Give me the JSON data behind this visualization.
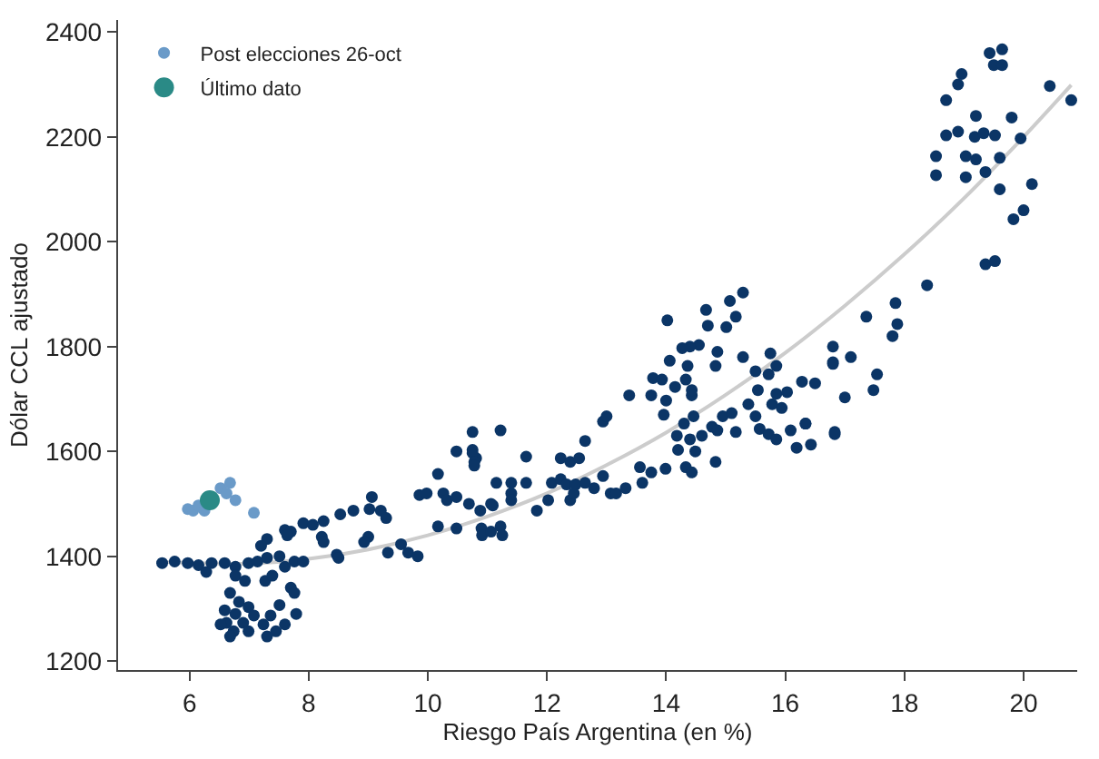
{
  "chart_data": {
    "type": "scatter",
    "xlabel": "Riesgo País Argentina (en %)",
    "ylabel": "Dólar CCL ajustado",
    "xlim": [
      4.8,
      20.9
    ],
    "ylim": [
      1183,
      2423
    ],
    "xticks": [
      6,
      8,
      10,
      12,
      14,
      16,
      18,
      20
    ],
    "yticks": [
      1200,
      1400,
      1600,
      1800,
      2000,
      2200,
      2400
    ],
    "grid": false,
    "legend": "top left",
    "series": [
      {
        "type": "line",
        "marker": "none",
        "color": "#cccccc",
        "x": [
          5.6,
          7,
          8,
          9,
          10,
          11,
          12,
          13,
          14,
          15,
          16,
          17,
          18,
          19,
          20,
          20.8
        ],
        "values": [
          1389,
          1386,
          1395,
          1413,
          1440,
          1476,
          1520,
          1574,
          1636,
          1708,
          1788,
          1878,
          1976,
          2083,
          2200,
          2299
        ]
      },
      {
        "marker": "circle",
        "color": "#0b3566",
        "x": [
          19.43,
          19.64,
          19.5,
          19.64,
          18.96,
          18.9,
          20.44,
          20.8,
          18.7,
          19.8,
          19.2,
          18.7,
          18.9,
          19.18,
          19.33,
          19.52,
          19.95,
          18.53,
          19.03,
          19.2,
          19.6,
          19.36,
          18.53,
          19.03,
          19.6,
          20.14,
          20.0,
          19.83,
          19.36,
          19.52,
          18.38,
          17.85,
          17.36,
          17.88,
          17.8,
          16.8,
          17.1,
          16.8,
          17.54,
          16.5,
          16.28,
          17.0,
          17.48,
          16.34,
          16.83,
          15.29,
          15.07,
          14.67,
          15.17,
          14.02,
          14.7,
          15.01,
          14.55,
          14.4,
          14.27,
          14.86,
          14.06,
          15.29,
          15.75,
          14.36,
          14.83,
          13.78,
          13.93,
          14.15,
          14.33,
          15.5,
          15.72,
          15.85,
          13.38,
          13.75,
          14.0,
          14.43,
          14.43,
          15.54,
          15.85,
          15.78,
          15.38,
          16.03,
          14.95,
          15.1,
          15.5,
          15.94,
          12.94,
          13.0,
          13.96,
          14.46,
          14.3,
          14.77,
          14.86,
          14.18,
          14.4,
          14.6,
          15.17,
          15.57,
          15.72,
          15.85,
          16.09,
          16.34,
          16.19,
          16.43,
          16.83,
          16.8,
          14.2,
          14.49,
          14.83,
          14.33,
          14.43,
          13.99,
          13.56,
          13.75,
          12.64,
          11.65,
          12.23,
          12.39,
          12.54,
          12.08,
          12.23,
          12.33,
          12.48,
          12.64,
          12.79,
          12.94,
          13.07,
          13.16,
          12.39,
          12.45,
          13.32,
          13.6,
          11.15,
          11.4,
          11.65,
          12.02,
          11.83,
          11.4,
          11.4,
          10.88,
          11.09,
          10.9,
          11.22,
          11.25,
          10.75,
          11.22,
          10.75,
          10.81,
          10.48,
          10.75,
          10.78,
          10.78,
          10.17,
          9.06,
          9.02,
          9.21,
          9.86,
          9.98,
          10.26,
          10.32,
          10.48,
          10.69,
          11.06,
          8.75,
          8.53,
          9.3,
          8.25,
          7.91,
          8.07,
          7.6,
          7.7,
          7.64,
          9.0,
          8.93,
          9.55,
          9.67,
          9.83,
          9.33,
          10.17,
          10.48,
          10.91,
          11.06,
          8.22,
          8.25,
          8.47,
          8.5,
          7.3,
          7.2,
          5.54,
          5.75,
          5.97,
          6.15,
          6.37,
          6.59,
          6.77,
          6.99,
          7.14,
          7.3,
          7.51,
          7.76,
          7.91,
          7.6,
          6.28,
          6.77,
          6.93,
          7.27,
          7.39,
          7.7,
          7.76,
          6.68,
          6.83,
          6.59,
          6.77,
          6.99,
          6.62,
          6.9,
          7.08,
          6.52,
          6.74,
          6.68,
          7.24,
          7.36,
          7.45,
          7.3,
          7.51,
          7.79,
          7.6,
          6.99
        ],
        "values": [
          2360,
          2367,
          2337,
          2337,
          2320,
          2300,
          2297,
          2270,
          2270,
          2237,
          2240,
          2203,
          2210,
          2200,
          2207,
          2203,
          2197,
          2163,
          2163,
          2157,
          2160,
          2133,
          2127,
          2123,
          2100,
          2110,
          2060,
          2043,
          1957,
          1963,
          1917,
          1883,
          1857,
          1843,
          1820,
          1800,
          1780,
          1767,
          1747,
          1730,
          1733,
          1703,
          1717,
          1653,
          1637,
          1903,
          1887,
          1870,
          1857,
          1850,
          1840,
          1837,
          1803,
          1800,
          1797,
          1790,
          1773,
          1780,
          1787,
          1763,
          1763,
          1740,
          1737,
          1723,
          1737,
          1753,
          1747,
          1763,
          1707,
          1707,
          1697,
          1707,
          1717,
          1717,
          1710,
          1690,
          1690,
          1713,
          1667,
          1673,
          1667,
          1683,
          1657,
          1667,
          1670,
          1667,
          1653,
          1647,
          1640,
          1630,
          1623,
          1630,
          1637,
          1643,
          1633,
          1623,
          1640,
          1653,
          1607,
          1613,
          1633,
          1770,
          1603,
          1600,
          1580,
          1570,
          1560,
          1567,
          1570,
          1560,
          1620,
          1590,
          1587,
          1580,
          1587,
          1540,
          1547,
          1537,
          1537,
          1540,
          1530,
          1553,
          1520,
          1520,
          1507,
          1520,
          1530,
          1540,
          1540,
          1540,
          1540,
          1507,
          1487,
          1520,
          1507,
          1487,
          1497,
          1453,
          1457,
          1440,
          1637,
          1640,
          1603,
          1587,
          1600,
          1597,
          1580,
          1573,
          1557,
          1513,
          1490,
          1487,
          1517,
          1520,
          1520,
          1507,
          1513,
          1500,
          1500,
          1487,
          1480,
          1473,
          1467,
          1463,
          1460,
          1450,
          1447,
          1440,
          1437,
          1427,
          1423,
          1407,
          1400,
          1407,
          1457,
          1453,
          1440,
          1447,
          1437,
          1427,
          1403,
          1397,
          1433,
          1420,
          1387,
          1390,
          1387,
          1383,
          1387,
          1387,
          1380,
          1387,
          1390,
          1397,
          1400,
          1390,
          1390,
          1380,
          1370,
          1363,
          1353,
          1353,
          1363,
          1340,
          1330,
          1330,
          1313,
          1297,
          1290,
          1303,
          1273,
          1273,
          1287,
          1270,
          1257,
          1247,
          1270,
          1287,
          1257,
          1247,
          1307,
          1290,
          1270,
          1257
        ]
      },
      {
        "marker": "circle",
        "name": "Post elecciones 26-oct",
        "color": "#6a9ac8",
        "x": [
          5.97,
          6.06,
          6.15,
          6.46,
          6.52,
          6.68,
          6.62,
          6.77,
          7.08,
          6.25
        ],
        "values": [
          1490,
          1487,
          1497,
          null,
          1530,
          1540,
          1520,
          1507,
          1483,
          1487
        ]
      },
      {
        "marker": "circle",
        "name": "Último dato",
        "color": "#2a8a86",
        "x": [
          6.34
        ],
        "values": [
          1507
        ]
      }
    ]
  }
}
